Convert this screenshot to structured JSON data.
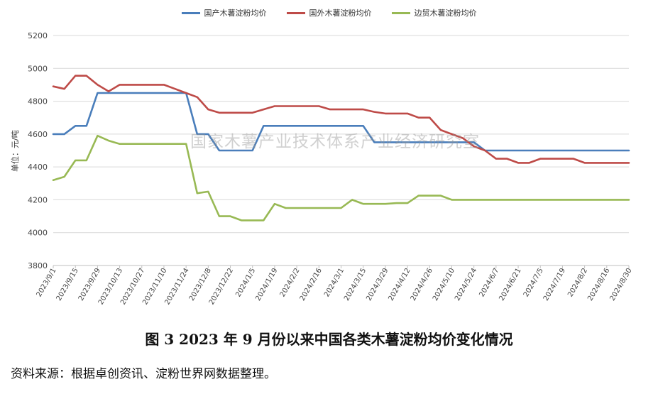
{
  "chart_data": {
    "type": "line",
    "ylabel": "单位：元/吨",
    "ylim": [
      3800,
      5200
    ],
    "yticks": [
      3800,
      4000,
      4200,
      4400,
      4600,
      4800,
      5000,
      5200
    ],
    "grid": "horizontal",
    "legend_position": "top-center",
    "x": [
      "2023/9/1",
      "2023/9/8",
      "2023/9/15",
      "2023/9/22",
      "2023/9/29",
      "2023/10/6",
      "2023/10/13",
      "2023/10/20",
      "2023/10/27",
      "2023/11/3",
      "2023/11/10",
      "2023/11/17",
      "2023/11/24",
      "2023/12/1",
      "2023/12/8",
      "2023/12/15",
      "2023/12/22",
      "2023/12/29",
      "2024/1/5",
      "2024/1/12",
      "2024/1/19",
      "2024/1/26",
      "2024/2/2",
      "2024/2/9",
      "2024/2/16",
      "2024/2/23",
      "2024/3/1",
      "2024/3/8",
      "2024/3/15",
      "2024/3/22",
      "2024/3/29",
      "2024/4/5",
      "2024/4/12",
      "2024/4/19",
      "2024/4/26",
      "2024/5/3",
      "2024/5/10",
      "2024/5/17",
      "2024/5/24",
      "2024/5/31",
      "2024/6/7",
      "2024/6/14",
      "2024/6/21",
      "2024/6/28",
      "2024/7/5",
      "2024/7/12",
      "2024/7/19",
      "2024/7/26",
      "2024/8/2",
      "2024/8/9",
      "2024/8/16",
      "2024/8/23",
      "2024/8/30"
    ],
    "xtick_labels": [
      "2023/9/1",
      "2023/9/15",
      "2023/9/29",
      "2023/10/13",
      "2023/10/27",
      "2023/11/10",
      "2023/11/24",
      "2023/12/8",
      "2023/12/22",
      "2024/1/5",
      "2024/1/19",
      "2024/2/2",
      "2024/2/16",
      "2024/3/1",
      "2024/3/15",
      "2024/3/29",
      "2024/4/12",
      "2024/4/26",
      "2024/5/10",
      "2024/5/24",
      "2024/6/7",
      "2024/6/21",
      "2024/7/5",
      "2024/7/19",
      "2024/8/2",
      "2024/8/16",
      "2024/8/30"
    ],
    "series": [
      {
        "name": "国产木薯淀粉均价",
        "color": "#4a7ebb",
        "values": [
          4600,
          4600,
          4650,
          4650,
          4850,
          4850,
          4850,
          4850,
          4850,
          4850,
          4850,
          4850,
          4850,
          4600,
          4600,
          4500,
          4500,
          4500,
          4500,
          4650,
          4650,
          4650,
          4650,
          4650,
          4650,
          4650,
          4650,
          4650,
          4650,
          4550,
          4550,
          4550,
          4550,
          4550,
          4550,
          4550,
          4550,
          4550,
          4550,
          4500,
          4500,
          4500,
          4500,
          4500,
          4500,
          4500,
          4500,
          4500,
          4500,
          4500,
          4500,
          4500,
          4500
        ]
      },
      {
        "name": "国外木薯淀粉均价",
        "color": "#be4b48",
        "values": [
          4890,
          4875,
          4955,
          4955,
          4900,
          4860,
          4900,
          4900,
          4900,
          4900,
          4900,
          4875,
          4850,
          4825,
          4750,
          4730,
          4730,
          4730,
          4730,
          4750,
          4770,
          4770,
          4770,
          4770,
          4770,
          4750,
          4750,
          4750,
          4750,
          4735,
          4725,
          4725,
          4725,
          4700,
          4700,
          4625,
          4600,
          4575,
          4525,
          4500,
          4450,
          4450,
          4425,
          4425,
          4450,
          4450,
          4450,
          4450,
          4425,
          4425,
          4425,
          4425,
          4425
        ]
      },
      {
        "name": "边贸木薯淀粉均价",
        "color": "#98b954",
        "values": [
          4320,
          4340,
          4440,
          4440,
          4590,
          4560,
          4540,
          4540,
          4540,
          4540,
          4540,
          4540,
          4540,
          4240,
          4250,
          4100,
          4100,
          4075,
          4075,
          4075,
          4175,
          4150,
          4150,
          4150,
          4150,
          4150,
          4150,
          4200,
          4175,
          4175,
          4175,
          4180,
          4180,
          4225,
          4225,
          4225,
          4200,
          4200,
          4200,
          4200,
          4200,
          4200,
          4200,
          4200,
          4200,
          4200,
          4200,
          4200,
          4200,
          4200,
          4200,
          4200,
          4200
        ]
      }
    ]
  },
  "watermark": "国家木薯产业技术体系产业经济研究室",
  "caption": "图 3    2023 年 9 月份以来中国各类木薯淀粉均价变化情况",
  "source": "资料来源：根据卓创资讯、淀粉世界网数据整理。"
}
